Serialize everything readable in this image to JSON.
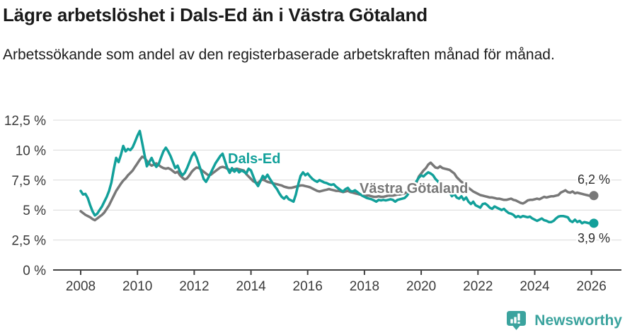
{
  "branding": {
    "logo_text": "Newsworthy",
    "logo_color": "#3BA39E"
  },
  "chart_data": {
    "type": "line",
    "title": "Lägre arbetslöshet i Dals-Ed än i Västra Götaland",
    "subtitle": "Arbetssökande som andel av den registerbaserade arbetskraften månad för månad.",
    "unit": "%",
    "frequency": "monthly",
    "x_start": "2008-01",
    "x_end": "2026-02",
    "x_start_year": 2008,
    "ylim": [
      0,
      12.5
    ],
    "grid": true,
    "legend_position": "inline-labels",
    "y_ticks": [
      0,
      2.5,
      5,
      7.5,
      10,
      12.5
    ],
    "y_tick_labels": [
      "0 %",
      "2,5 %",
      "5 %",
      "7,5 %",
      "10 %",
      "12,5 %"
    ],
    "x_ticks_years": [
      2008,
      2010,
      2012,
      2014,
      2016,
      2018,
      2020,
      2022,
      2024,
      2026
    ],
    "x_tick_labels": [
      "2008",
      "2010",
      "2012",
      "2014",
      "2016",
      "2018",
      "2020",
      "2022",
      "2024",
      "2026"
    ],
    "series": [
      {
        "id": "vastra-gotaland",
        "name": "Västra Götaland",
        "color": "#787878",
        "end_label": "6,2 %",
        "end_value": 6.2,
        "values": [
          4.9,
          4.75,
          4.6,
          4.5,
          4.4,
          4.25,
          4.15,
          4.3,
          4.45,
          4.6,
          4.8,
          5.1,
          5.4,
          5.8,
          6.2,
          6.6,
          6.9,
          7.2,
          7.45,
          7.65,
          7.9,
          8.1,
          8.3,
          8.6,
          8.9,
          9.2,
          9.45,
          9.35,
          9.1,
          8.85,
          8.7,
          8.8,
          8.9,
          8.75,
          8.6,
          8.5,
          8.45,
          8.5,
          8.4,
          8.25,
          8.1,
          8.2,
          7.9,
          7.7,
          7.55,
          7.65,
          7.9,
          8.2,
          8.4,
          8.55,
          8.5,
          8.35,
          8.2,
          8.05,
          7.9,
          7.95,
          8.1,
          8.25,
          8.4,
          8.55,
          8.6,
          8.55,
          8.45,
          8.35,
          8.3,
          8.4,
          8.45,
          8.4,
          8.35,
          8.3,
          8.0,
          7.8,
          7.6,
          7.4,
          7.3,
          7.25,
          7.45,
          7.55,
          7.45,
          7.35,
          7.3,
          7.25,
          7.2,
          7.15,
          7.1,
          7.05,
          6.95,
          6.9,
          6.85,
          6.85,
          6.9,
          6.95,
          7.0,
          7.05,
          7.05,
          7.0,
          6.95,
          6.9,
          6.8,
          6.7,
          6.6,
          6.55,
          6.6,
          6.65,
          6.7,
          6.75,
          6.7,
          6.65,
          6.6,
          6.6,
          6.55,
          6.5,
          6.55,
          6.6,
          6.5,
          6.45,
          6.4,
          6.35,
          6.3,
          6.3,
          6.25,
          6.2,
          6.2,
          6.15,
          6.1,
          6.1,
          6.15,
          6.1,
          6.1,
          6.15,
          6.2,
          6.2,
          6.2,
          6.25,
          6.3,
          6.3,
          6.35,
          6.4,
          6.5,
          6.6,
          6.7,
          6.9,
          7.3,
          7.8,
          8.05,
          8.3,
          8.5,
          8.8,
          8.95,
          8.75,
          8.55,
          8.5,
          8.65,
          8.5,
          8.45,
          8.4,
          8.35,
          8.2,
          8.05,
          7.75,
          7.55,
          7.35,
          7.25,
          7.05,
          6.85,
          6.7,
          6.55,
          6.45,
          6.35,
          6.25,
          6.2,
          6.15,
          6.1,
          6.05,
          6.05,
          6.0,
          5.95,
          5.95,
          5.9,
          5.85,
          5.85,
          5.9,
          5.95,
          5.85,
          5.8,
          5.7,
          5.6,
          5.55,
          5.65,
          5.8,
          5.85,
          5.85,
          5.9,
          5.95,
          5.9,
          6.0,
          6.1,
          6.05,
          6.1,
          6.15,
          6.15,
          6.2,
          6.25,
          6.45,
          6.55,
          6.65,
          6.5,
          6.45,
          6.55,
          6.4,
          6.45,
          6.4,
          6.35,
          6.3,
          6.25,
          6.2,
          6.15,
          6.2
        ]
      },
      {
        "id": "dals-ed",
        "name": "Dals-Ed",
        "color": "#12A09A",
        "end_label": "3,9 %",
        "end_value": 3.9,
        "values": [
          6.6,
          6.3,
          6.35,
          6.0,
          5.4,
          4.9,
          4.55,
          4.7,
          5.0,
          5.3,
          5.7,
          6.1,
          6.6,
          7.3,
          8.4,
          9.35,
          9.0,
          9.6,
          10.35,
          9.9,
          10.1,
          10.0,
          10.25,
          10.7,
          11.2,
          11.6,
          10.6,
          9.6,
          8.65,
          9.0,
          9.35,
          8.9,
          8.6,
          8.85,
          9.4,
          9.9,
          10.2,
          9.9,
          9.5,
          9.0,
          8.5,
          8.7,
          8.2,
          7.9,
          8.1,
          8.5,
          9.0,
          9.5,
          9.8,
          9.4,
          8.8,
          8.2,
          7.6,
          7.35,
          7.7,
          8.1,
          8.5,
          8.9,
          9.2,
          9.5,
          9.7,
          9.1,
          8.5,
          8.1,
          8.5,
          8.2,
          8.4,
          8.15,
          8.3,
          8.2,
          8.05,
          8.45,
          8.3,
          7.8,
          7.3,
          7.0,
          7.4,
          7.85,
          7.65,
          7.95,
          7.6,
          7.3,
          7.0,
          6.75,
          6.4,
          6.1,
          5.95,
          6.15,
          5.9,
          5.8,
          5.7,
          6.3,
          7.15,
          7.85,
          8.15,
          7.9,
          8.05,
          7.8,
          7.6,
          7.45,
          7.35,
          7.5,
          7.4,
          7.3,
          7.25,
          7.15,
          7.1,
          7.15,
          6.95,
          6.8,
          6.65,
          6.55,
          6.75,
          6.85,
          6.6,
          6.55,
          6.65,
          6.5,
          6.35,
          6.2,
          6.1,
          6.0,
          5.95,
          5.9,
          5.8,
          5.7,
          5.85,
          5.8,
          5.85,
          5.8,
          5.85,
          5.9,
          5.85,
          5.7,
          5.85,
          5.9,
          5.95,
          6.0,
          6.2,
          6.5,
          6.8,
          7.1,
          7.4,
          7.7,
          7.9,
          7.8,
          8.0,
          8.15,
          8.05,
          7.9,
          7.6,
          7.4,
          7.2,
          7.0,
          6.8,
          6.6,
          6.45,
          6.15,
          6.35,
          6.05,
          5.95,
          6.15,
          5.85,
          6.05,
          5.7,
          5.5,
          5.7,
          5.4,
          5.3,
          5.2,
          5.5,
          5.55,
          5.4,
          5.2,
          5.1,
          5.3,
          5.2,
          5.1,
          5.0,
          5.1,
          4.9,
          4.75,
          4.7,
          4.6,
          4.4,
          4.5,
          4.4,
          4.5,
          4.45,
          4.4,
          4.45,
          4.3,
          4.2,
          4.1,
          4.2,
          4.3,
          4.15,
          4.1,
          4.0,
          4.0,
          4.1,
          4.3,
          4.45,
          4.5,
          4.5,
          4.45,
          4.4,
          4.1,
          4.0,
          4.2,
          4.0,
          4.1,
          3.9,
          4.0,
          3.95,
          3.9,
          4.0,
          3.9
        ]
      }
    ]
  }
}
